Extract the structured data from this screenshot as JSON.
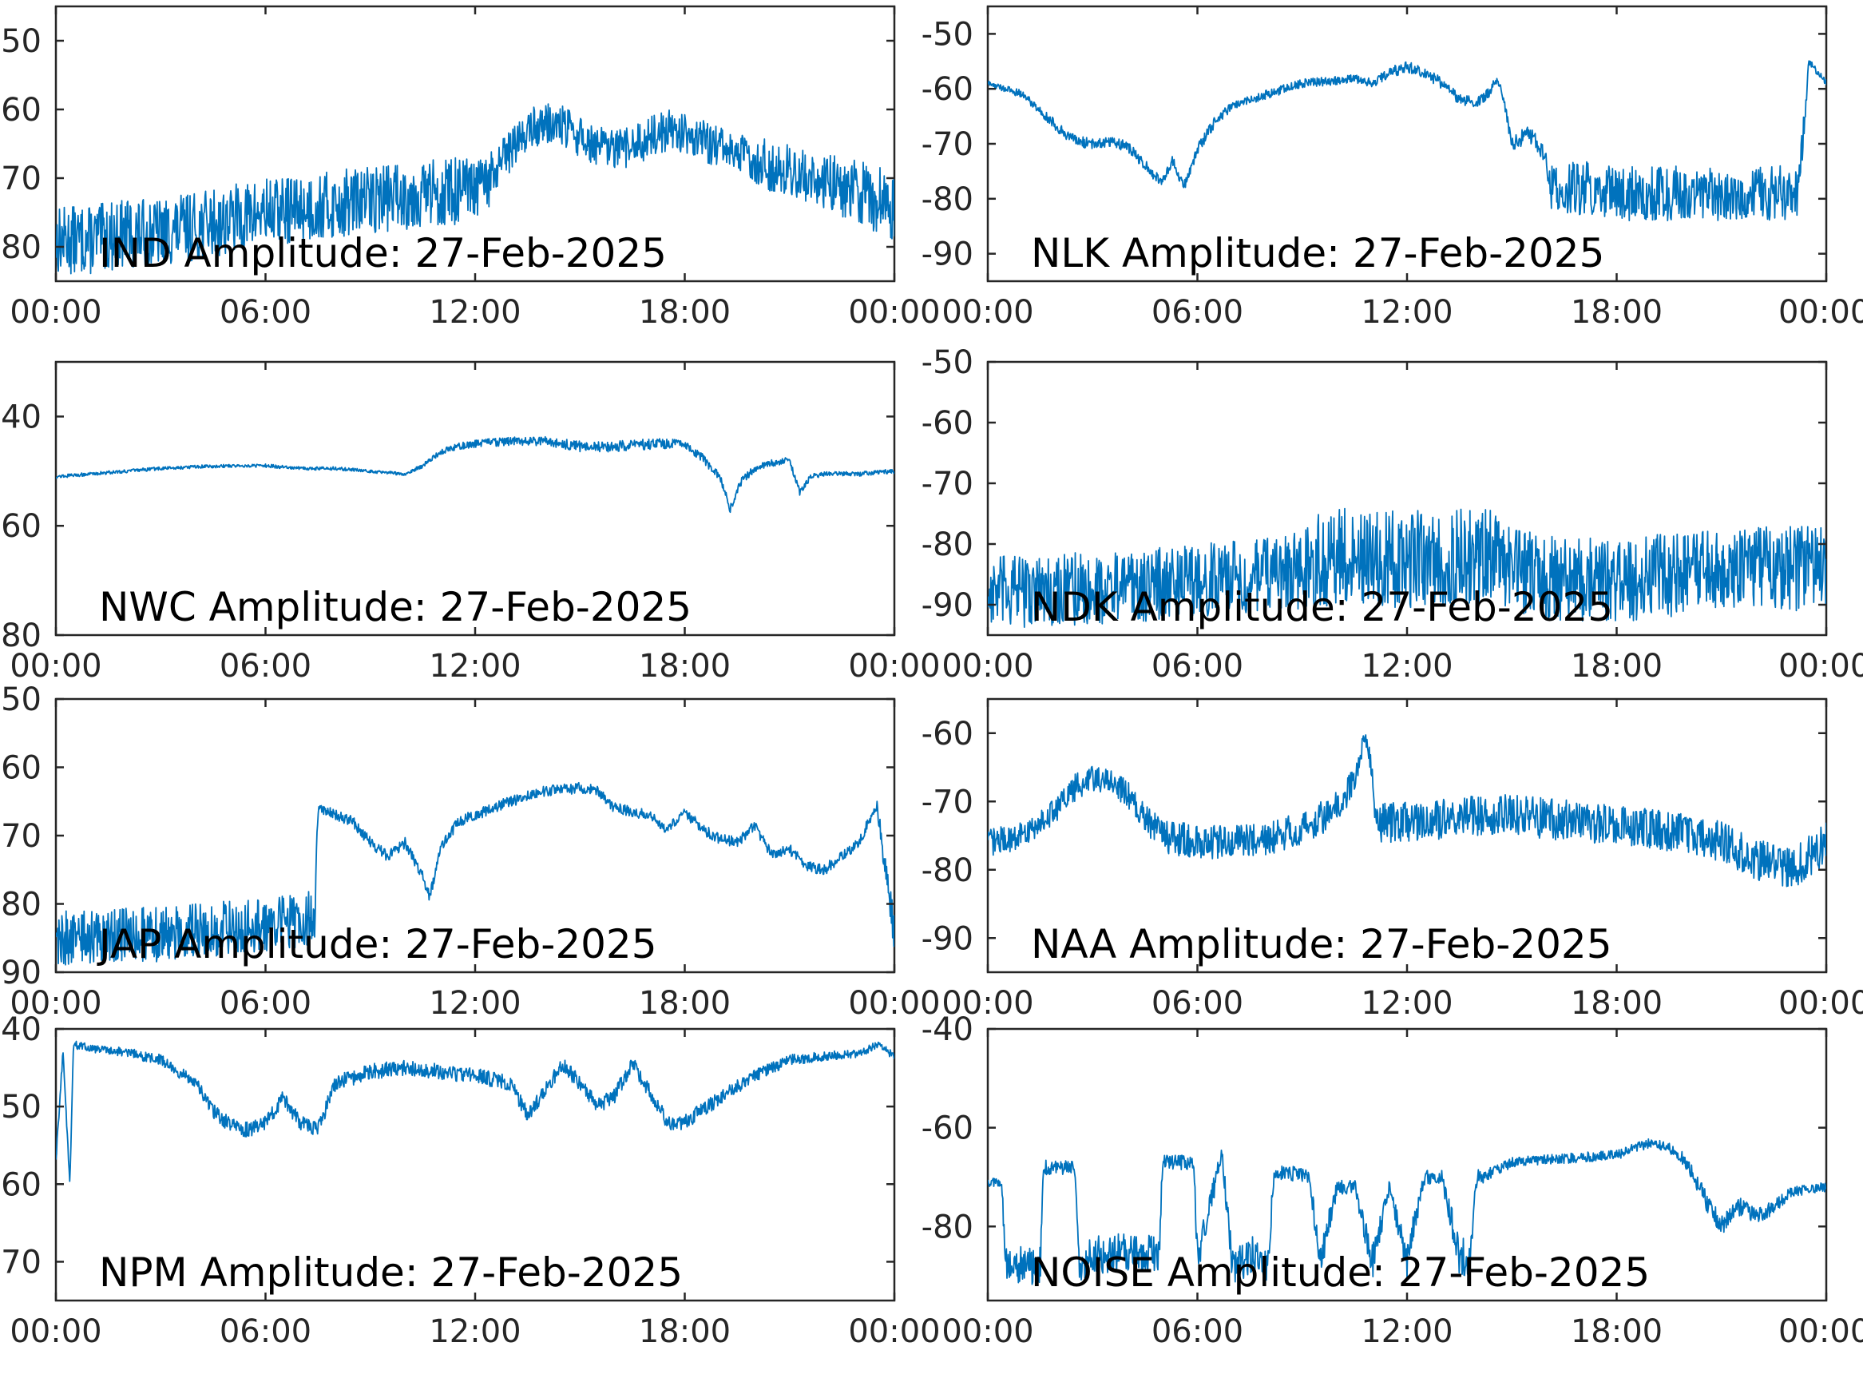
{
  "colors": {
    "trace": "#0072BD",
    "axis": "#262626",
    "background": "#ffffff"
  },
  "chart_data": [
    {
      "type": "line",
      "title": "IND Amplitude: 27-Feb-2025",
      "x_ticks": [
        "00:00",
        "06:00",
        "12:00",
        "18:00",
        "00:00"
      ],
      "x_unit": "hours",
      "xlim": [
        0,
        24
      ],
      "ylim": [
        -85,
        -45
      ],
      "y_ticks": [
        -50,
        -60,
        -70,
        -80
      ],
      "y_tick_labels": [
        "50",
        "60",
        "70",
        "80"
      ],
      "series": [
        {
          "x": [
            0,
            1,
            2,
            3,
            4,
            5,
            6,
            7,
            8,
            9,
            10,
            11,
            12,
            12.5,
            13,
            13.5,
            14,
            14.5,
            15,
            15.5,
            16,
            16.5,
            17,
            17.5,
            18,
            18.5,
            19,
            20,
            21,
            22,
            23,
            23.5,
            24
          ],
          "y": [
            -79,
            -79,
            -78,
            -78,
            -77,
            -76,
            -75,
            -74.5,
            -74,
            -73,
            -72.5,
            -72,
            -72,
            -70,
            -66,
            -63,
            -62,
            -62.5,
            -64,
            -65.5,
            -66,
            -65.5,
            -64,
            -63,
            -63.5,
            -64.5,
            -65.5,
            -67.5,
            -69,
            -70.5,
            -72,
            -73,
            -74
          ],
          "band": [
            5,
            5,
            5,
            5,
            5,
            5,
            5,
            5,
            5,
            5,
            5,
            5,
            5,
            4,
            3,
            3,
            3,
            3,
            3,
            3,
            3,
            3,
            3,
            3,
            3,
            3,
            3,
            3.5,
            4,
            4,
            5,
            5,
            5
          ]
        }
      ]
    },
    {
      "type": "line",
      "title": "NLK Amplitude: 27-Feb-2025",
      "x_ticks": [
        "00:00",
        "06:00",
        "12:00",
        "18:00",
        "00:00"
      ],
      "x_unit": "hours",
      "xlim": [
        0,
        24
      ],
      "ylim": [
        -95,
        -45
      ],
      "y_ticks": [
        -50,
        -60,
        -70,
        -80,
        -90
      ],
      "y_tick_labels": [
        "-50",
        "-60",
        "-70",
        "-80",
        "-90"
      ],
      "series": [
        {
          "x": [
            0,
            1,
            1.5,
            2,
            2.5,
            3,
            3.5,
            4,
            4.5,
            5,
            5.3,
            5.6,
            6,
            6.5,
            7,
            8,
            9,
            10,
            10.5,
            11,
            11.5,
            12,
            12.5,
            13,
            13.5,
            14,
            14.3,
            14.6,
            14.8,
            15,
            15.5,
            16,
            16.1,
            17,
            18,
            19,
            20,
            21,
            22,
            23,
            23.2,
            23.5,
            24
          ],
          "y": [
            -59,
            -61,
            -64,
            -67,
            -69.5,
            -70,
            -69.5,
            -70.5,
            -74,
            -77,
            -73,
            -78,
            -71,
            -66,
            -63,
            -61,
            -59,
            -58.5,
            -58,
            -59,
            -57,
            -56,
            -57,
            -59,
            -62,
            -62.5,
            -61,
            -58,
            -63,
            -70,
            -68,
            -73,
            -78,
            -78,
            -79,
            -79,
            -79,
            -79,
            -79,
            -79,
            -80,
            -55,
            -59
          ],
          "band": [
            0.5,
            0.7,
            0.8,
            1,
            1,
            1,
            1,
            1,
            1,
            1,
            1,
            1,
            1,
            1,
            0.8,
            0.8,
            0.8,
            0.8,
            0.8,
            0.8,
            1,
            1,
            1,
            1,
            1,
            1,
            1,
            1,
            1,
            1.5,
            1.5,
            2,
            4,
            5,
            5,
            5,
            5,
            5,
            5,
            5,
            5,
            0.6,
            0.6
          ]
        }
      ]
    },
    {
      "type": "line",
      "title": "NWC Amplitude: 27-Feb-2025",
      "x_ticks": [
        "00:00",
        "06:00",
        "12:00",
        "18:00",
        "00:00"
      ],
      "x_unit": "hours",
      "xlim": [
        0,
        24
      ],
      "ylim": [
        -80,
        -30
      ],
      "y_ticks": [
        -40,
        -60,
        -80
      ],
      "y_tick_labels": [
        "40",
        "60",
        "80"
      ],
      "series": [
        {
          "x": [
            0,
            1,
            2,
            3,
            4,
            5,
            6,
            7,
            8,
            9,
            10,
            10.5,
            11,
            11.5,
            12,
            13,
            14,
            15,
            16,
            17,
            18,
            18.5,
            19,
            19.3,
            19.6,
            20,
            20.5,
            21,
            21.3,
            21.6,
            22,
            23,
            24
          ],
          "y": [
            -51,
            -50.5,
            -50,
            -49.5,
            -49.2,
            -49,
            -49,
            -49.5,
            -49.5,
            -50,
            -50.5,
            -49,
            -46.5,
            -45.5,
            -45,
            -44.5,
            -44.5,
            -45.5,
            -45.5,
            -45,
            -45,
            -47.5,
            -51,
            -57,
            -52,
            -49.5,
            -48.5,
            -48,
            -54,
            -51,
            -50.5,
            -50.5,
            -50
          ],
          "band": [
            0.3,
            0.3,
            0.3,
            0.3,
            0.3,
            0.3,
            0.3,
            0.3,
            0.3,
            0.3,
            0.3,
            0.4,
            0.5,
            0.6,
            0.7,
            0.8,
            0.8,
            1,
            1,
            1,
            0.8,
            0.8,
            0.8,
            0.8,
            0.8,
            0.6,
            0.6,
            0.6,
            0.6,
            0.5,
            0.4,
            0.4,
            0.4
          ]
        }
      ]
    },
    {
      "type": "line",
      "title": "NDK Amplitude: 27-Feb-2025",
      "x_ticks": [
        "00:00",
        "06:00",
        "12:00",
        "18:00",
        "00:00"
      ],
      "x_unit": "hours",
      "xlim": [
        0,
        24
      ],
      "ylim": [
        -95,
        -50
      ],
      "y_ticks": [
        -50,
        -60,
        -70,
        -80,
        -90
      ],
      "y_tick_labels": [
        "-50",
        "-60",
        "-70",
        "-80",
        "-90"
      ],
      "series": [
        {
          "x": [
            0,
            2,
            4,
            6,
            8,
            9,
            9.5,
            10,
            11,
            12,
            13,
            14,
            14.5,
            15,
            16,
            17,
            18,
            19,
            20,
            21,
            22,
            23,
            24
          ],
          "y": [
            -88,
            -87.5,
            -87,
            -86,
            -85,
            -84,
            -82.5,
            -82,
            -82.5,
            -82.5,
            -82.5,
            -82,
            -82.5,
            -84.5,
            -85.5,
            -86,
            -86,
            -85.5,
            -85,
            -84.5,
            -84,
            -84,
            -84
          ],
          "band": [
            6,
            6,
            6,
            6,
            6,
            7,
            8,
            8,
            8,
            8,
            8,
            8,
            8,
            7,
            7,
            7,
            7,
            7,
            7,
            7,
            7,
            7,
            7
          ]
        }
      ]
    },
    {
      "type": "line",
      "title": "JAP Amplitude: 27-Feb-2025",
      "x_ticks": [
        "00:00",
        "06:00",
        "12:00",
        "18:00",
        "00:00"
      ],
      "x_unit": "hours",
      "xlim": [
        0,
        24
      ],
      "ylim": [
        -90,
        -50
      ],
      "y_ticks": [
        -50,
        -60,
        -70,
        -80,
        -90
      ],
      "y_tick_labels": [
        "50",
        "60",
        "70",
        "80",
        "90"
      ],
      "series": [
        {
          "x": [
            0,
            1,
            2,
            3,
            4,
            5,
            6,
            7,
            7.4,
            7.5,
            8,
            8.5,
            9,
            9.5,
            10,
            10.5,
            10.7,
            11,
            11.5,
            12,
            13,
            14,
            15,
            15.5,
            16,
            17,
            17.5,
            18,
            18.5,
            19,
            19.5,
            20,
            20.5,
            21,
            21.5,
            22,
            23,
            23.3,
            23.5,
            24
          ],
          "y": [
            -85,
            -85,
            -84.5,
            -84.5,
            -84,
            -83.5,
            -83,
            -82.5,
            -82,
            -66,
            -67,
            -68,
            -71,
            -73,
            -71,
            -76,
            -79,
            -72,
            -68,
            -67,
            -65,
            -63.5,
            -63,
            -63.5,
            -66,
            -67,
            -69,
            -66.5,
            -69,
            -70.5,
            -71,
            -68.5,
            -73,
            -72,
            -74.5,
            -75,
            -71,
            -67.5,
            -65.5,
            -84
          ],
          "band": [
            4,
            4,
            4,
            4,
            4,
            4,
            4,
            4,
            4,
            0.8,
            0.8,
            0.8,
            0.8,
            0.8,
            0.8,
            0.8,
            0.8,
            0.8,
            0.8,
            0.8,
            0.8,
            0.8,
            0.8,
            0.8,
            0.8,
            0.8,
            0.8,
            0.8,
            0.8,
            0.8,
            0.8,
            0.8,
            0.8,
            0.8,
            0.8,
            0.8,
            0.8,
            0.8,
            0.8,
            4
          ]
        }
      ]
    },
    {
      "type": "line",
      "title": "NAA Amplitude: 27-Feb-2025",
      "x_ticks": [
        "00:00",
        "06:00",
        "12:00",
        "18:00",
        "00:00"
      ],
      "x_unit": "hours",
      "xlim": [
        0,
        24
      ],
      "ylim": [
        -95,
        -55
      ],
      "y_ticks": [
        -60,
        -70,
        -80,
        -90
      ],
      "y_tick_labels": [
        "-60",
        "-70",
        "-80",
        "-90"
      ],
      "series": [
        {
          "x": [
            0,
            1,
            2,
            2.5,
            3,
            3.5,
            4,
            4.5,
            5,
            6,
            7,
            8,
            9,
            10,
            10.5,
            10.8,
            11,
            11.1,
            12,
            13,
            14,
            15,
            16,
            17,
            18,
            19,
            20,
            21,
            22,
            23,
            24
          ],
          "y": [
            -76,
            -75,
            -71,
            -68,
            -66.5,
            -67,
            -69,
            -72.5,
            -75,
            -76,
            -76,
            -75.5,
            -74,
            -71,
            -67,
            -60,
            -66,
            -73,
            -73,
            -72.5,
            -72,
            -72,
            -72.5,
            -73,
            -73.5,
            -74,
            -74.5,
            -76,
            -78.5,
            -80,
            -76
          ],
          "band": [
            2,
            2,
            2,
            2,
            2,
            2,
            2,
            2,
            2.5,
            2.5,
            2.5,
            2.5,
            2.5,
            2.5,
            2,
            1,
            2,
            3,
            3,
            3,
            3,
            3,
            3,
            3,
            3,
            3,
            3,
            3,
            3,
            3,
            3
          ]
        }
      ]
    },
    {
      "type": "line",
      "title": "NPM Amplitude: 27-Feb-2025",
      "x_ticks": [
        "00:00",
        "06:00",
        "12:00",
        "18:00",
        "00:00"
      ],
      "x_unit": "hours",
      "xlim": [
        0,
        24
      ],
      "ylim": [
        -75,
        -40
      ],
      "y_ticks": [
        -40,
        -50,
        -60,
        -70
      ],
      "y_tick_labels": [
        "40",
        "50",
        "60",
        "70"
      ],
      "series": [
        {
          "x": [
            0,
            0.2,
            0.4,
            0.5,
            1,
            2,
            3,
            4,
            4.5,
            5,
            5.5,
            6,
            6.5,
            7,
            7.5,
            8,
            9,
            10,
            11,
            12,
            13,
            13.5,
            14,
            14.5,
            15,
            15.5,
            16,
            16.5,
            17,
            17.5,
            18,
            19,
            20,
            21,
            22,
            23,
            23.5,
            24
          ],
          "y": [
            -57,
            -43,
            -60,
            -42,
            -42.5,
            -43,
            -44,
            -47,
            -50.5,
            -52.5,
            -53,
            -52,
            -49,
            -52,
            -53,
            -47,
            -45.5,
            -45,
            -45.5,
            -46,
            -47,
            -51,
            -48,
            -44.5,
            -47,
            -50,
            -48.5,
            -44.5,
            -48,
            -52,
            -52,
            -49,
            -46,
            -44,
            -43.5,
            -43.2,
            -42,
            -43.5
          ],
          "band": [
            0.5,
            0.5,
            0.5,
            0.5,
            0.5,
            0.6,
            0.7,
            0.8,
            1,
            1,
            1,
            1,
            1,
            1,
            1,
            1,
            1,
            1,
            1,
            1,
            1,
            1,
            1,
            1,
            1,
            1,
            1,
            1,
            1,
            1,
            1,
            1,
            0.8,
            0.7,
            0.6,
            0.5,
            0.5,
            0.5
          ]
        }
      ]
    },
    {
      "type": "line",
      "title": "NOISE Amplitude: 27-Feb-2025",
      "x_ticks": [
        "00:00",
        "06:00",
        "12:00",
        "18:00",
        "00:00"
      ],
      "x_unit": "hours",
      "xlim": [
        0,
        24
      ],
      "ylim": [
        -95,
        -40
      ],
      "y_ticks": [
        -40,
        -60,
        -80
      ],
      "y_tick_labels": [
        "-40",
        "-60",
        "-80"
      ],
      "series": [
        {
          "x": [
            0,
            0.4,
            0.5,
            1.5,
            1.6,
            2.5,
            2.6,
            3,
            4,
            4.9,
            5,
            5.9,
            6,
            6.7,
            7,
            7.6,
            8,
            8.2,
            8.5,
            9.2,
            9.5,
            10,
            10.5,
            11,
            11.5,
            12,
            12.5,
            13,
            13.5,
            13.8,
            14,
            14.2,
            15,
            16,
            17,
            18,
            19,
            19.5,
            20,
            20.5,
            21,
            21.5,
            22,
            22.5,
            23,
            24
          ],
          "y": [
            -71,
            -71,
            -88,
            -88,
            -68,
            -68,
            -88,
            -86,
            -85,
            -85,
            -67,
            -67,
            -87,
            -65,
            -88,
            -86,
            -88,
            -69,
            -69,
            -70,
            -87,
            -72,
            -72,
            -87,
            -72,
            -87,
            -70,
            -70,
            -86,
            -86,
            -70,
            -70,
            -67,
            -66.5,
            -66,
            -65.5,
            -63,
            -64,
            -67,
            -74,
            -80,
            -76,
            -78,
            -76,
            -73,
            -72
          ],
          "band": [
            1,
            1,
            4,
            4,
            1.5,
            1.5,
            4,
            4,
            4,
            4,
            1.5,
            1.5,
            4,
            1.5,
            4,
            4,
            4,
            1.5,
            1.5,
            1.5,
            4,
            1.5,
            1.5,
            4,
            1.5,
            4,
            1.5,
            1.5,
            4,
            4,
            1.5,
            1.5,
            1,
            1,
            1,
            1,
            1,
            1,
            1.5,
            2,
            2,
            2,
            1.5,
            1.5,
            1,
            1
          ]
        }
      ]
    }
  ]
}
